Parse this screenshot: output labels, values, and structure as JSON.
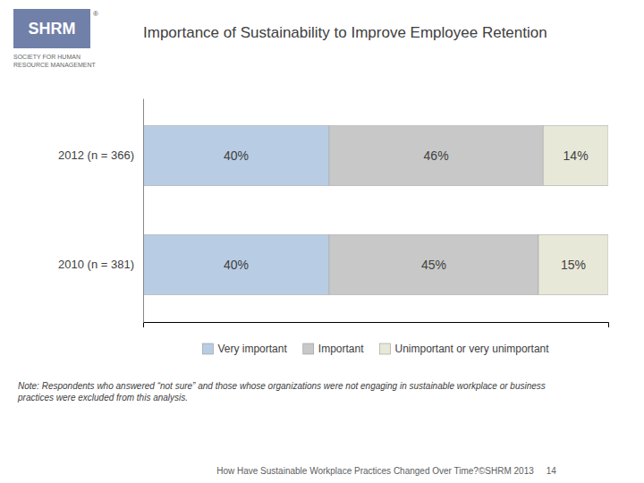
{
  "chart_data": {
    "type": "bar",
    "orientation": "horizontal",
    "stacked": true,
    "title": "Importance of Sustainability to Improve Employee Retention",
    "categories": [
      "2012 (n = 366)",
      "2010 (n = 381)"
    ],
    "series": [
      {
        "name": "Very important",
        "color": "#b8cce4",
        "values": [
          40,
          40
        ],
        "value_labels": [
          "40%",
          "40%"
        ]
      },
      {
        "name": "Important",
        "color": "#c8c8c8",
        "values": [
          46,
          45
        ],
        "value_labels": [
          "46%",
          "45%"
        ]
      },
      {
        "name": "Unimportant or very unimportant",
        "color": "#e8e8d8",
        "values": [
          14,
          15
        ],
        "value_labels": [
          "14%",
          "15%"
        ]
      }
    ],
    "xlim": [
      0,
      100
    ],
    "xticks": [],
    "tick_labels": "y",
    "grid": false,
    "legend": "bottom",
    "data_labels": true,
    "annotations": [
      "SHRM",
      "®",
      "SOCIETY FOR HUMAN",
      "RESOURCE MANAGEMENT",
      "Note: Respondents who answered “not sure” and those whose organizations were not engaging in sustainable workplace or business\npractices were excluded from this analysis.",
      "How Have Sustainable Workplace Practices Changed Over Time?©SHRM 2013     14"
    ]
  }
}
